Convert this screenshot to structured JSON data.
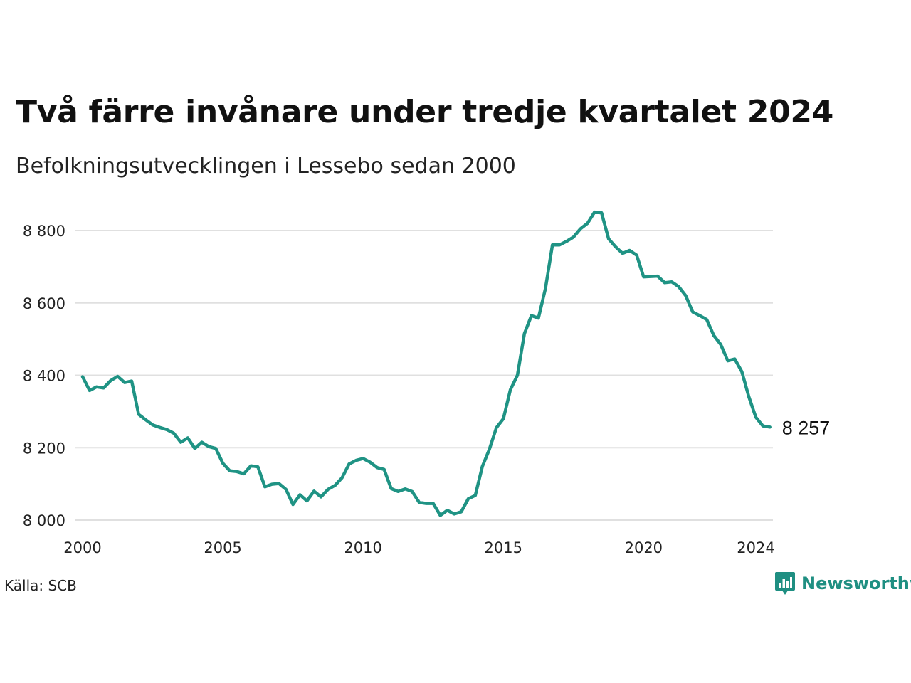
{
  "title": "Två färre invånare under tredje kvartalet 2024",
  "subtitle": "Befolkningsutvecklingen i Lessebo sedan 2000",
  "source": "Källa: SCB",
  "brand": {
    "name": "Newsworthy",
    "icon": "newsworthy-logo-icon",
    "color": "#1f8f82"
  },
  "chart_data": {
    "type": "line",
    "title": "Två färre invånare under tredje kvartalet 2024",
    "subtitle": "Befolkningsutvecklingen i Lessebo sedan 2000",
    "xlabel": "",
    "ylabel": "",
    "xlim": [
      2000,
      2024.75
    ],
    "ylim": [
      8000,
      8860
    ],
    "x_ticks": [
      2000,
      2005,
      2010,
      2015,
      2020,
      2024
    ],
    "x_tick_labels": [
      "2000",
      "2005",
      "2010",
      "2015",
      "2020",
      "2024"
    ],
    "y_ticks": [
      8000,
      8200,
      8400,
      8600,
      8800
    ],
    "y_tick_labels": [
      "8 000",
      "8 200",
      "8 400",
      "8 600",
      "8 800"
    ],
    "grid": "horizontal",
    "line_color": "#1f9384",
    "end_label": "8 257",
    "series": [
      {
        "values": [
          8396,
          8358,
          8368,
          8365,
          8385,
          8397,
          8380,
          8384,
          8292,
          8277,
          8263,
          8256,
          8250,
          8240,
          8215,
          8227,
          8198,
          8215,
          8203,
          8198,
          8157,
          8136,
          8134,
          8128,
          8150,
          8147,
          8092,
          8099,
          8101,
          8085,
          8043,
          8070,
          8053,
          8080,
          8064,
          8085,
          8096,
          8117,
          8155,
          8165,
          8170,
          8160,
          8145,
          8140,
          8087,
          8079,
          8086,
          8079,
          8049,
          8046,
          8046,
          8013,
          8027,
          8017,
          8023,
          8059,
          8068,
          8148,
          8195,
          8255,
          8280,
          8360,
          8400,
          8515,
          8565,
          8558,
          8640,
          8760,
          8760,
          8770,
          8782,
          8805,
          8820,
          8851,
          8849,
          8777,
          8755,
          8737,
          8745,
          8732,
          8672,
          8673,
          8674,
          8656,
          8658,
          8645,
          8620,
          8575,
          8565,
          8554,
          8510,
          8485,
          8440,
          8445,
          8410,
          8341,
          8284,
          8260,
          8257
        ]
      }
    ]
  }
}
